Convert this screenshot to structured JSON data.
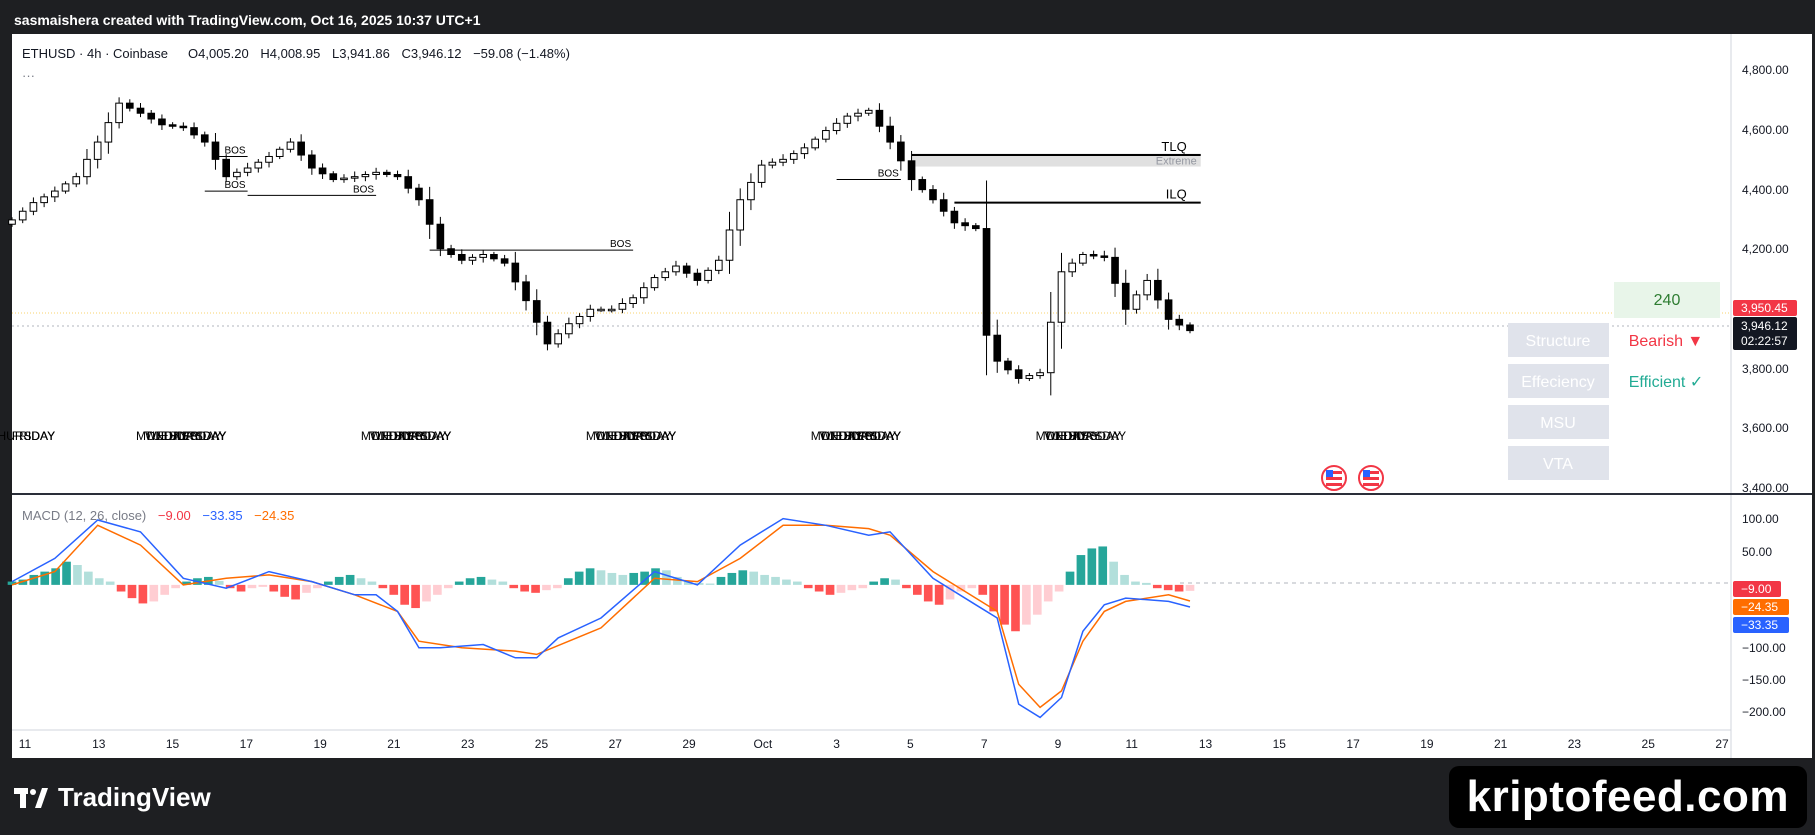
{
  "header": {
    "attribution": "sasmaishera created with TradingView.com, Oct 16, 2025 10:37 UTC+1"
  },
  "legend": {
    "symbol": "ETHUSD · 4h · Coinbase",
    "open_label": "O",
    "open": "4,005.20",
    "high_label": "H",
    "high": "4,008.95",
    "low_label": "L",
    "low": "3,941.86",
    "close_label": "C",
    "close": "3,946.12",
    "change": "−59.08 (−1.48%)",
    "more": "···"
  },
  "price_scale": {
    "ticks": [
      "4,800.00",
      "4,600.00",
      "4,400.00",
      "4,200.00",
      "3,800.00",
      "3,600.00",
      "3,400.00"
    ],
    "label_red": "3,950.45",
    "label_price": "3,946.12",
    "label_countdown": "02:22:57"
  },
  "macd_legend": {
    "title": "MACD (12, 26, close)",
    "hist": "−9.00",
    "macd": "−33.35",
    "signal": "−24.35"
  },
  "macd_scale": {
    "ticks": [
      "100.00",
      "50.00",
      "−100.00",
      "−150.00",
      "−200.00"
    ],
    "hist_label": "−9.00",
    "signal_label": "−24.35",
    "macd_label": "−33.35"
  },
  "time_axis": [
    "11",
    "13",
    "15",
    "17",
    "19",
    "21",
    "23",
    "25",
    "27",
    "29",
    "Oct",
    "3",
    "5",
    "7",
    "9",
    "11",
    "13",
    "15",
    "17",
    "19",
    "21",
    "23",
    "25",
    "27"
  ],
  "day_labels": [
    {
      "x": 1,
      "text": "THURSDAY"
    },
    {
      "x": 2,
      "text": "FRIDAY"
    },
    {
      "x": 14,
      "text": "MONDAY"
    },
    {
      "x": 15,
      "text": "TUESDAY"
    },
    {
      "x": 16,
      "text": "WEDNESDAY"
    },
    {
      "x": 17,
      "text": "THURSDAY"
    },
    {
      "x": 18,
      "text": "FRIDAY"
    },
    {
      "x": 35,
      "text": "MONDAY"
    },
    {
      "x": 36,
      "text": "TUESDAY"
    },
    {
      "x": 37,
      "text": "WEDNESDAY"
    },
    {
      "x": 38,
      "text": "THURSDAY"
    },
    {
      "x": 39,
      "text": "FRIDAY"
    },
    {
      "x": 56,
      "text": "MONDAY"
    },
    {
      "x": 57,
      "text": "TUESDAY"
    },
    {
      "x": 58,
      "text": "WEDNESDAY"
    },
    {
      "x": 59,
      "text": "THURSDAY"
    },
    {
      "x": 60,
      "text": "FRIDAY"
    },
    {
      "x": 77,
      "text": "MONDAY"
    },
    {
      "x": 78,
      "text": "TUESDAY"
    },
    {
      "x": 79,
      "text": "WEDNESDAY"
    },
    {
      "x": 80,
      "text": "THURSDAY"
    },
    {
      "x": 81,
      "text": "FRIDAY"
    },
    {
      "x": 98,
      "text": "MONDAY"
    },
    {
      "x": 99,
      "text": "TUESDAY"
    },
    {
      "x": 100,
      "text": "WEDNESDAY"
    },
    {
      "x": 101,
      "text": "THURSDAY"
    }
  ],
  "annotations": {
    "bos": "BOS",
    "tlq": "TLQ",
    "ilq": "ILQ",
    "extreme": "Extreme",
    "bos_markers": [
      {
        "x1": 19,
        "x2": 22,
        "y": 4550
      },
      {
        "x1": 18,
        "x2": 22,
        "y": 4430
      },
      {
        "x1": 22,
        "x2": 34,
        "y": 4415
      },
      {
        "x1": 39,
        "x2": 58,
        "y": 4225
      },
      {
        "x1": 77,
        "x2": 83,
        "y": 4470
      }
    ],
    "tlq_line": {
      "x1": 84,
      "x2": 111,
      "y": 4555
    },
    "ilq_line": {
      "x1": 88,
      "x2": 111,
      "y": 4390
    },
    "extreme_zone": {
      "x1": 84,
      "x2": 111,
      "y1": 4515,
      "y2": 4560
    }
  },
  "table": {
    "number": "240",
    "rows": [
      {
        "label": "Structure",
        "value": "Bearish ▼",
        "color": "#f23645"
      },
      {
        "label": "Effeciency",
        "value": "Efficient ✓",
        "color": "#22ab94"
      },
      {
        "label": "MSU",
        "value": "",
        "color": ""
      },
      {
        "label": "VTA",
        "value": "",
        "color": ""
      }
    ]
  },
  "footer": {
    "brand": "TradingView",
    "watermark": "kriptofeed.com"
  },
  "colors": {
    "up_candle": "#ffffff",
    "down_candle": "#000000",
    "macd_line": "#2962ff",
    "signal_line": "#ff6d00",
    "hist_pos_strong": "#26a69a",
    "hist_pos_weak": "#b2dfdb",
    "hist_neg_strong": "#ff5252",
    "hist_neg_weak": "#ffcdd2",
    "price_red": "#f23645",
    "efficient_green": "#22ab94"
  },
  "chart_data": {
    "type": "candlestick",
    "title": "ETHUSD · 4h · Coinbase",
    "interval": "4h",
    "x_range": [
      "Sep 10",
      "Oct 16"
    ],
    "ylim": [
      3400,
      4850
    ],
    "close_points": [
      [
        0,
        4330
      ],
      [
        2,
        4390
      ],
      [
        4,
        4430
      ],
      [
        6,
        4480
      ],
      [
        8,
        4600
      ],
      [
        10,
        4735
      ],
      [
        12,
        4700
      ],
      [
        14,
        4660
      ],
      [
        16,
        4650
      ],
      [
        18,
        4600
      ],
      [
        20,
        4480
      ],
      [
        22,
        4510
      ],
      [
        24,
        4550
      ],
      [
        26,
        4600
      ],
      [
        28,
        4510
      ],
      [
        30,
        4470
      ],
      [
        32,
        4480
      ],
      [
        34,
        4495
      ],
      [
        36,
        4480
      ],
      [
        38,
        4400
      ],
      [
        40,
        4230
      ],
      [
        42,
        4190
      ],
      [
        44,
        4210
      ],
      [
        46,
        4180
      ],
      [
        48,
        4050
      ],
      [
        50,
        3900
      ],
      [
        52,
        3970
      ],
      [
        54,
        4020
      ],
      [
        56,
        4020
      ],
      [
        58,
        4060
      ],
      [
        60,
        4130
      ],
      [
        62,
        4170
      ],
      [
        64,
        4120
      ],
      [
        66,
        4190
      ],
      [
        68,
        4400
      ],
      [
        70,
        4520
      ],
      [
        72,
        4540
      ],
      [
        74,
        4580
      ],
      [
        76,
        4640
      ],
      [
        78,
        4690
      ],
      [
        80,
        4710
      ],
      [
        82,
        4600
      ],
      [
        84,
        4470
      ],
      [
        86,
        4400
      ],
      [
        88,
        4320
      ],
      [
        90,
        4300
      ],
      [
        91,
        3930
      ],
      [
        92,
        3840
      ],
      [
        94,
        3780
      ],
      [
        96,
        3800
      ],
      [
        98,
        4150
      ],
      [
        100,
        4210
      ],
      [
        102,
        4200
      ],
      [
        104,
        4020
      ],
      [
        106,
        4120
      ],
      [
        108,
        3985
      ],
      [
        110,
        3946
      ]
    ],
    "macd": {
      "x_range": [
        0,
        110
      ],
      "ylim": [
        -210,
        110
      ],
      "macd_points": [
        [
          0,
          5
        ],
        [
          4,
          40
        ],
        [
          8,
          98
        ],
        [
          12,
          80
        ],
        [
          16,
          10
        ],
        [
          20,
          -5
        ],
        [
          24,
          20
        ],
        [
          28,
          5
        ],
        [
          32,
          -15
        ],
        [
          34,
          -15
        ],
        [
          36,
          -40
        ],
        [
          38,
          -95
        ],
        [
          40,
          -95
        ],
        [
          44,
          -90
        ],
        [
          47,
          -110
        ],
        [
          49,
          -110
        ],
        [
          51,
          -80
        ],
        [
          55,
          -50
        ],
        [
          60,
          20
        ],
        [
          64,
          0
        ],
        [
          68,
          60
        ],
        [
          72,
          100
        ],
        [
          76,
          90
        ],
        [
          80,
          75
        ],
        [
          82,
          80
        ],
        [
          86,
          10
        ],
        [
          90,
          -30
        ],
        [
          92,
          -50
        ],
        [
          94,
          -180
        ],
        [
          96,
          -200
        ],
        [
          98,
          -170
        ],
        [
          100,
          -70
        ],
        [
          102,
          -30
        ],
        [
          104,
          -20
        ],
        [
          108,
          -25
        ],
        [
          110,
          -33.35
        ]
      ],
      "signal_points": [
        [
          0,
          0
        ],
        [
          4,
          20
        ],
        [
          8,
          90
        ],
        [
          12,
          60
        ],
        [
          16,
          0
        ],
        [
          20,
          10
        ],
        [
          24,
          15
        ],
        [
          28,
          5
        ],
        [
          32,
          -15
        ],
        [
          36,
          -40
        ],
        [
          38,
          -85
        ],
        [
          42,
          -95
        ],
        [
          47,
          -100
        ],
        [
          49,
          -105
        ],
        [
          55,
          -65
        ],
        [
          60,
          10
        ],
        [
          64,
          5
        ],
        [
          68,
          40
        ],
        [
          72,
          90
        ],
        [
          76,
          90
        ],
        [
          80,
          85
        ],
        [
          82,
          75
        ],
        [
          86,
          20
        ],
        [
          90,
          -20
        ],
        [
          92,
          -40
        ],
        [
          94,
          -150
        ],
        [
          96,
          -185
        ],
        [
          98,
          -160
        ],
        [
          100,
          -85
        ],
        [
          102,
          -40
        ],
        [
          104,
          -25
        ],
        [
          108,
          -15
        ],
        [
          110,
          -24.35
        ]
      ],
      "histogram": [
        5,
        8,
        15,
        20,
        25,
        35,
        30,
        20,
        10,
        5,
        -10,
        -20,
        -28,
        -25,
        -15,
        -5,
        5,
        10,
        12,
        6,
        -5,
        -10,
        -5,
        -3,
        -10,
        -18,
        -22,
        -12,
        -5,
        5,
        12,
        15,
        10,
        5,
        -5,
        -15,
        -30,
        -35,
        -25,
        -15,
        -5,
        5,
        10,
        12,
        8,
        5,
        -5,
        -10,
        -12,
        -8,
        -5,
        10,
        20,
        25,
        22,
        18,
        15,
        18,
        20,
        25,
        22,
        12,
        5,
        3,
        2,
        12,
        18,
        22,
        20,
        15,
        12,
        8,
        5,
        -5,
        -10,
        -15,
        -12,
        -8,
        -5,
        5,
        10,
        8,
        -5,
        -15,
        -25,
        -30,
        -22,
        -10,
        -5,
        -15,
        -40,
        -60,
        -70,
        -60,
        -45,
        -25,
        -10,
        20,
        45,
        55,
        58,
        35,
        15,
        5,
        3,
        -5,
        -8,
        -10,
        -9
      ]
    }
  }
}
